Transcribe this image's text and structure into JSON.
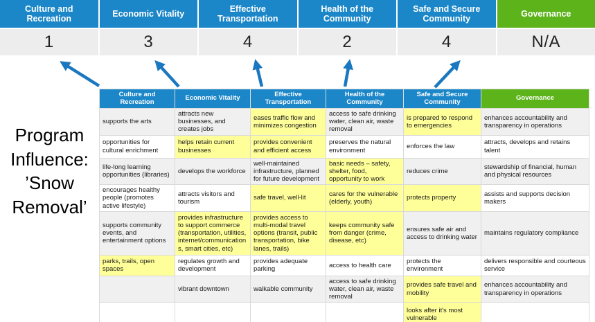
{
  "title": {
    "text": "Program Influence: ’Snow Removal’"
  },
  "colors": {
    "priority_blue": "#1b86c8",
    "governance_green": "#5cb31a",
    "arrow_blue": "#1b78c0",
    "highlight_yellow": "#ffff99",
    "score_gray": "#ededed",
    "band_gray": "#f0f0f0"
  },
  "scoreboard": {
    "columns": [
      {
        "label": "Culture and Recreation",
        "score": "1",
        "theme": "blue"
      },
      {
        "label": "Economic Vitality",
        "score": "3",
        "theme": "blue"
      },
      {
        "label": "Effective Transportation",
        "score": "4",
        "theme": "blue"
      },
      {
        "label": "Health of the Community",
        "score": "2",
        "theme": "blue"
      },
      {
        "label": "Safe and Secure Community",
        "score": "4",
        "theme": "blue"
      },
      {
        "label": "Governance",
        "score": "N/A",
        "theme": "green"
      }
    ]
  },
  "arrows": [
    {
      "name": "arrow-to-culture-recreation",
      "direction": "up-left"
    },
    {
      "name": "arrow-to-economic-vitality",
      "direction": "up-left"
    },
    {
      "name": "arrow-to-effective-transportation",
      "direction": "up"
    },
    {
      "name": "arrow-to-health-community",
      "direction": "up"
    },
    {
      "name": "arrow-to-safe-secure-community",
      "direction": "up-right"
    }
  ],
  "matrix": {
    "headers": [
      {
        "label": "Culture and Recreation",
        "theme": "blue"
      },
      {
        "label": "Economic Vitality",
        "theme": "blue"
      },
      {
        "label": "Effective Transportation",
        "theme": "blue"
      },
      {
        "label": "Health of the Community",
        "theme": "blue"
      },
      {
        "label": "Safe and Secure\nCommunity",
        "theme": "blue"
      },
      {
        "label": "Governance",
        "theme": "green"
      }
    ],
    "rows": [
      {
        "cells": [
          {
            "text": "supports the arts",
            "hl": false
          },
          {
            "text": "attracts new businesses, and creates jobs",
            "hl": false
          },
          {
            "text": "eases traffic flow and minimizes congestion",
            "hl": true
          },
          {
            "text": "access to safe drinking water, clean air, waste removal",
            "hl": false
          },
          {
            "text": "is prepared to respond to emergencies",
            "hl": true
          },
          {
            "text": "enhances accountability and transparency in operations",
            "hl": false
          }
        ]
      },
      {
        "cells": [
          {
            "text": "opportunities for cultural enrichment",
            "hl": false
          },
          {
            "text": "helps retain current businesses",
            "hl": true
          },
          {
            "text": "provides convenient and efficient access",
            "hl": true
          },
          {
            "text": "preserves the natural environment",
            "hl": false
          },
          {
            "text": "enforces the law",
            "hl": false
          },
          {
            "text": "attracts, develops and retains talent",
            "hl": false
          }
        ]
      },
      {
        "cells": [
          {
            "text": "life-long learning opportunities (libraries)",
            "hl": false
          },
          {
            "text": "develops the workforce",
            "hl": false
          },
          {
            "text": "well-maintained infrastructure, planned for future development",
            "hl": false
          },
          {
            "text": "basic needs – safety, shelter, food, opportunity to work",
            "hl": true
          },
          {
            "text": "reduces crime",
            "hl": false
          },
          {
            "text": "stewardship of financial, human and physical resources",
            "hl": false
          }
        ]
      },
      {
        "cells": [
          {
            "text": "encourages healthy people (promotes active lifestyle)",
            "hl": false
          },
          {
            "text": "attracts visitors and tourism",
            "hl": false
          },
          {
            "text": "safe travel, well-lit",
            "hl": true
          },
          {
            "text": "cares for the vulnerable (elderly, youth)",
            "hl": true
          },
          {
            "text": "protects property",
            "hl": true
          },
          {
            "text": "assists and supports decision makers",
            "hl": false
          }
        ]
      },
      {
        "cells": [
          {
            "text": "supports community events, and entertainment options",
            "hl": false
          },
          {
            "text": "provides infrastructure to support commerce (transportation, utilities, internet/communications, smart cities, etc)",
            "hl": true
          },
          {
            "text": "provides access to multi-modal travel options (transit, public transportation, bike lanes, trails)",
            "hl": true
          },
          {
            "text": "keeps community safe from danger (crime, disease, etc)",
            "hl": true
          },
          {
            "text": "ensures safe air and access to drinking water",
            "hl": false
          },
          {
            "text": "maintains regulatory compliance",
            "hl": false
          }
        ]
      },
      {
        "cells": [
          {
            "text": "parks, trails, open spaces",
            "hl": true
          },
          {
            "text": "regulates growth and development",
            "hl": false
          },
          {
            "text": "provides adequate parking",
            "hl": false
          },
          {
            "text": "access to health care",
            "hl": false
          },
          {
            "text": "protects the environment",
            "hl": false
          },
          {
            "text": "delivers responsible and courteous service",
            "hl": false
          }
        ]
      },
      {
        "cells": [
          {
            "text": "",
            "hl": false
          },
          {
            "text": "vibrant downtown",
            "hl": false
          },
          {
            "text": "walkable community",
            "hl": false
          },
          {
            "text": "access to safe drinking water, clean air, waste removal",
            "hl": false
          },
          {
            "text": "provides safe travel and mobility",
            "hl": true
          },
          {
            "text": "enhances accountability and transparency in operations",
            "hl": false
          }
        ]
      },
      {
        "cells": [
          {
            "text": "",
            "hl": false
          },
          {
            "text": "",
            "hl": false
          },
          {
            "text": "",
            "hl": false
          },
          {
            "text": "",
            "hl": false
          },
          {
            "text": "looks after it's most vulnerable",
            "hl": true
          },
          {
            "text": "",
            "hl": false
          }
        ]
      }
    ]
  }
}
